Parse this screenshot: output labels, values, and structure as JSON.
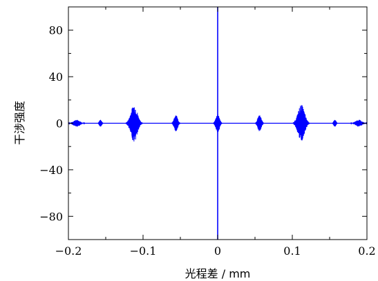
{
  "chart_data": {
    "type": "line",
    "title": "",
    "xlabel": "光程差 / mm",
    "ylabel": "干涉强度",
    "xlim": [
      -0.2,
      0.2
    ],
    "ylim": [
      -100,
      100
    ],
    "x_ticks": [
      -0.2,
      -0.1,
      0,
      0.1,
      0.2
    ],
    "x_tick_labels": [
      "−0.2",
      "−0.1",
      "0",
      "0.1",
      "0.2"
    ],
    "y_ticks": [
      -80,
      -40,
      0,
      40,
      80
    ],
    "y_tick_labels": [
      "−80",
      "−40",
      "0",
      "40",
      "80"
    ],
    "grid": false,
    "legend": "none",
    "series_color": "#0000ff",
    "packets": [
      {
        "center": -0.189,
        "half_width": 0.011,
        "amp": 3
      },
      {
        "center": -0.157,
        "half_width": 0.004,
        "amp": 3
      },
      {
        "center": -0.112,
        "half_width": 0.011,
        "amp": 16
      },
      {
        "center": -0.056,
        "half_width": 0.006,
        "amp": 7
      },
      {
        "center": 0.0,
        "half_width": 0.006,
        "amp": 8
      },
      {
        "center": 0.056,
        "half_width": 0.006,
        "amp": 7
      },
      {
        "center": 0.112,
        "half_width": 0.011,
        "amp": 16
      },
      {
        "center": 0.157,
        "half_width": 0.004,
        "amp": 3
      },
      {
        "center": 0.189,
        "half_width": 0.011,
        "amp": 3
      }
    ],
    "central_peak": {
      "x": 0.0,
      "y_max": 100,
      "y_min": -100
    }
  }
}
